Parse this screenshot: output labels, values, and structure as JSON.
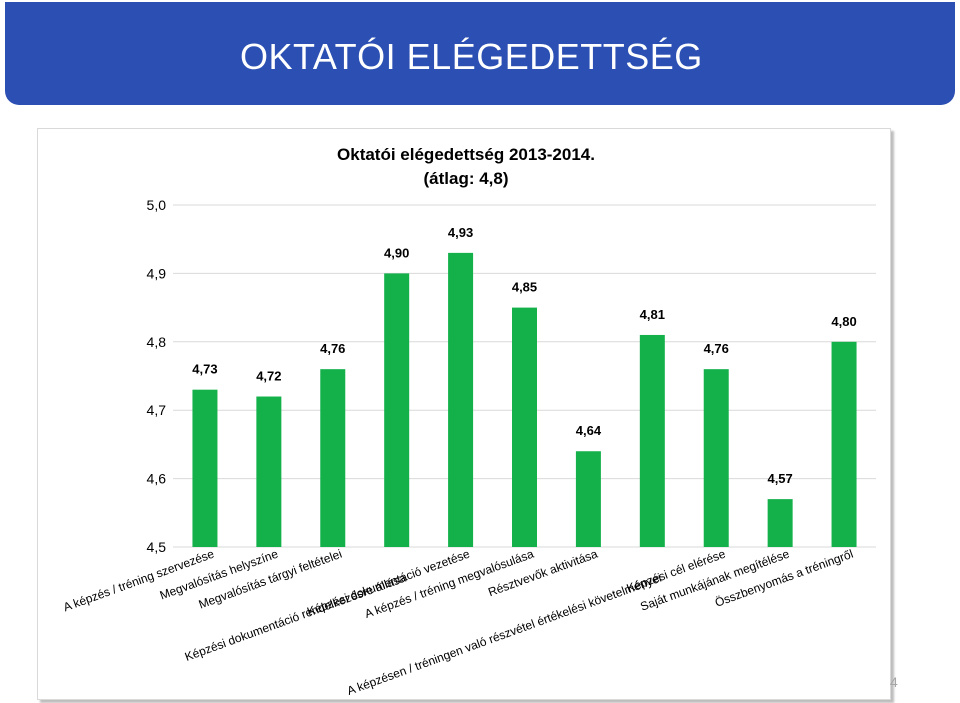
{
  "slide": {
    "title": "OKTATÓI ELÉGEDETTSÉG",
    "page_number": "4"
  },
  "colors": {
    "banner": "#2b4fb2",
    "bar": "#14b14b",
    "gridline": "#d9d9d9"
  },
  "chart_data": {
    "type": "bar",
    "title": "Oktatói elégedettség 2013-2014.",
    "subtitle": "(átlag: 4,8)",
    "categories": [
      "A képzés / tréning szervezése",
      "Megvalósítás helyszíne",
      "Megvalósítás tárgyi feltételei",
      "Képzési dokumentáció rendelkezésre állása",
      "Képzési dokumentáció vezetése",
      "A képzés / tréning megvalósulása",
      "Résztvevők aktivitása",
      "A képzésen / tréningen való részvétel értékelési  követelményei",
      "Képzési cél elérése",
      "Saját munkájának megítélése",
      "Összbenyomás a tréningről"
    ],
    "values": [
      4.73,
      4.72,
      4.76,
      4.9,
      4.93,
      4.85,
      4.64,
      4.81,
      4.76,
      4.57,
      4.8
    ],
    "value_labels": [
      "4,73",
      "4,72",
      "4,76",
      "4,90",
      "4,93",
      "4,85",
      "4,64",
      "4,81",
      "4,76",
      "4,57",
      "4,80"
    ],
    "ylim": [
      4.5,
      5.0
    ],
    "yticks": [
      5.0,
      4.9,
      4.8,
      4.7,
      4.6,
      4.5
    ],
    "ytick_labels": [
      "5,0",
      "4,9",
      "4,8",
      "4,7",
      "4,6",
      "4,5"
    ],
    "grid": true,
    "legend": "none"
  }
}
